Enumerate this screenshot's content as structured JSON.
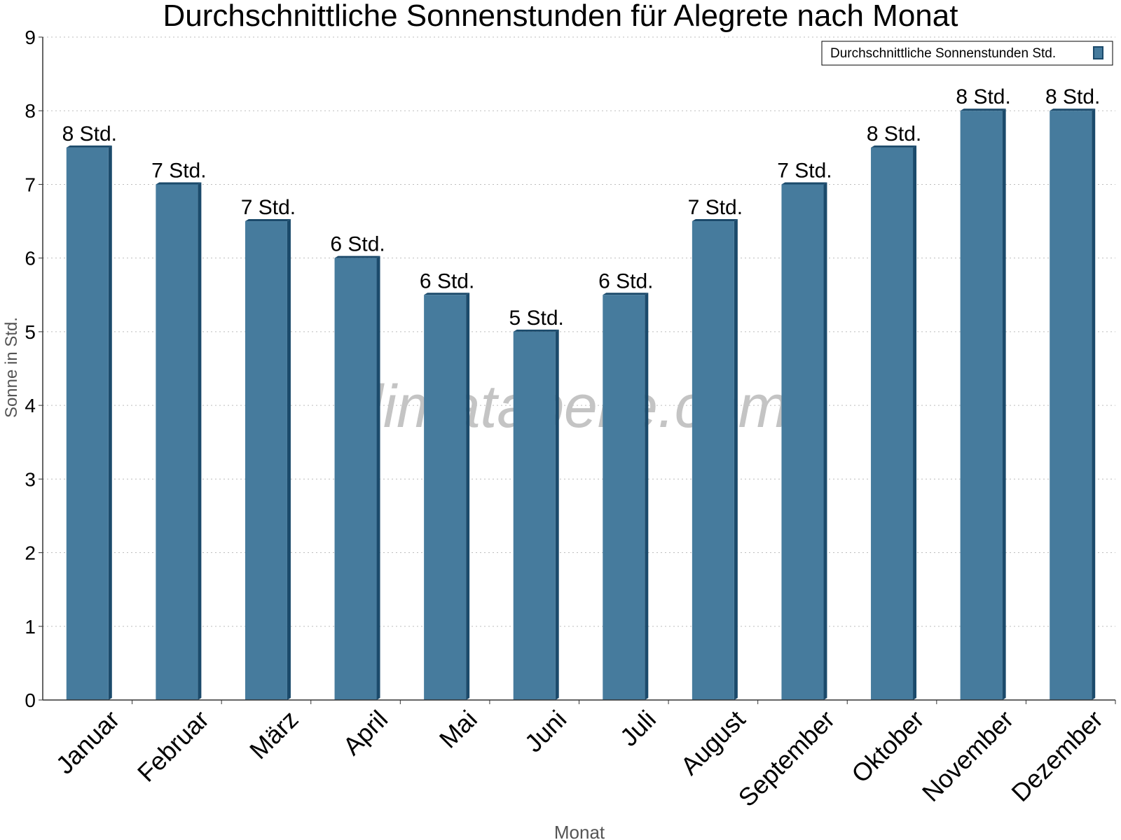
{
  "chart_data": {
    "type": "bar",
    "title": "Durchschnittliche Sonnenstunden für Alegrete nach Monat",
    "xlabel": "Monat",
    "ylabel": "Sonne in Std.",
    "ylim": [
      0,
      9
    ],
    "yticks": [
      0,
      1,
      2,
      3,
      4,
      5,
      6,
      7,
      8,
      9
    ],
    "grid": true,
    "legend_position": "top-right",
    "categories": [
      "Januar",
      "Februar",
      "März",
      "April",
      "Mai",
      "Juni",
      "Juli",
      "August",
      "September",
      "Oktober",
      "November",
      "Dezember"
    ],
    "series": [
      {
        "name": "Durchschnittliche Sonnenstunden Std.",
        "color": "#467b9d",
        "values": [
          7.5,
          7,
          6.5,
          6,
          5.5,
          5,
          5.5,
          6.5,
          7,
          7.5,
          8,
          8
        ],
        "data_labels": [
          "8 Std.",
          "7 Std.",
          "7 Std.",
          "6 Std.",
          "6 Std.",
          "5 Std.",
          "6 Std.",
          "7 Std.",
          "7 Std.",
          "8 Std.",
          "8 Std.",
          "8 Std."
        ]
      }
    ],
    "watermark": "klimatabelle.com"
  }
}
